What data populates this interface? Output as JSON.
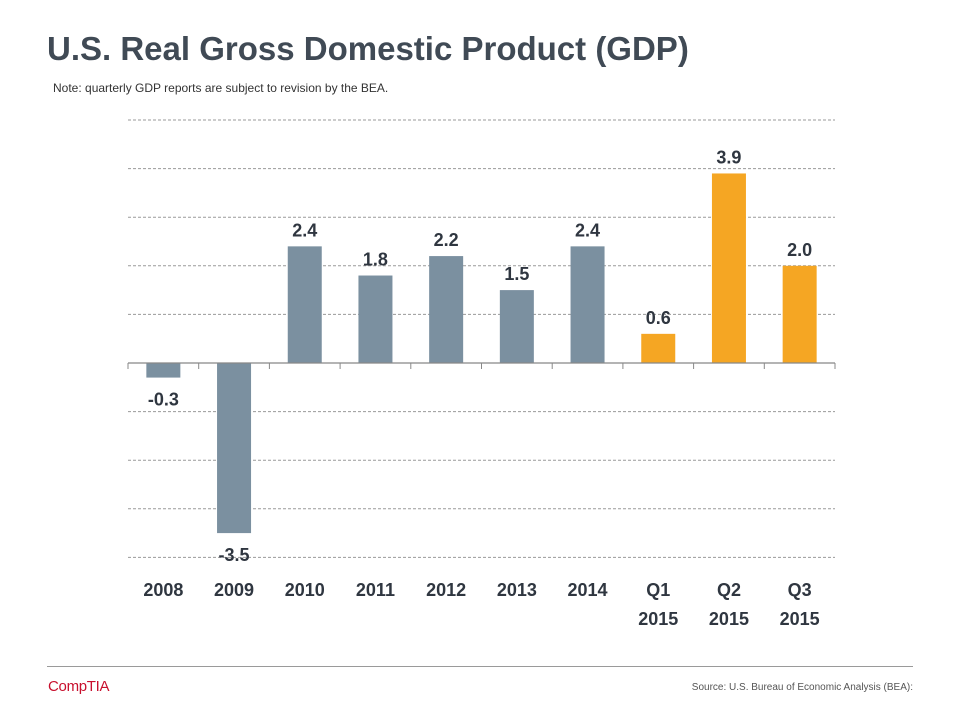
{
  "title": "U.S. Real Gross Domestic Product (GDP)",
  "note": "Note: quarterly GDP reports are subject to revision by the BEA.",
  "source": "Source: U.S. Bureau of Economic Analysis (BEA):",
  "logo": "CompTIA",
  "colors": {
    "annual_bar": "#7b90a0",
    "quarterly_bar": "#f5a623",
    "gridline": "#9a9a9a",
    "axis": "#888888",
    "label_text": "#2f3640",
    "title_text": "#404a55",
    "logo": "#c8102e"
  },
  "chart_data": {
    "type": "bar",
    "title": "U.S. Real Gross Domestic Product (GDP)",
    "xlabel": "",
    "ylabel": "",
    "ylim": [
      -4,
      5
    ],
    "gridline_step": 1,
    "grid": true,
    "categories": [
      [
        "2008"
      ],
      [
        "2009"
      ],
      [
        "2010"
      ],
      [
        "2011"
      ],
      [
        "2012"
      ],
      [
        "2013"
      ],
      [
        "2014"
      ],
      [
        "Q1",
        "2015"
      ],
      [
        "Q2",
        "2015"
      ],
      [
        "Q3",
        "2015"
      ]
    ],
    "values": [
      -0.3,
      -3.5,
      2.4,
      1.8,
      2.2,
      1.5,
      2.4,
      0.6,
      3.9,
      2.0
    ],
    "data_labels": [
      "-0.3",
      "-3.5",
      "2.4",
      "1.8",
      "2.2",
      "1.5",
      "2.4",
      "0.6",
      "3.9",
      "2.0"
    ],
    "series_kind": [
      "annual",
      "annual",
      "annual",
      "annual",
      "annual",
      "annual",
      "annual",
      "quarterly",
      "quarterly",
      "quarterly"
    ]
  }
}
